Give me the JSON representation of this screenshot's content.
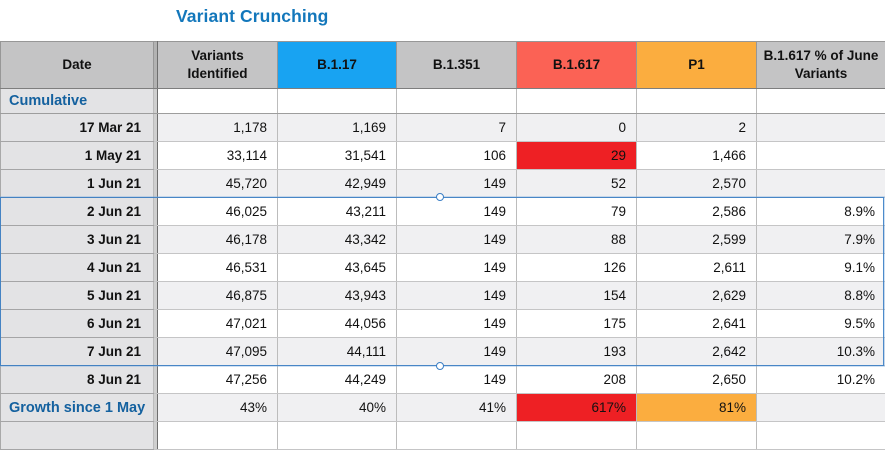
{
  "title": "Variant Crunching",
  "colors": {
    "title_blue": "#1377bb",
    "row_label_blue": "#14619f",
    "header_gray": "#c4c4c5",
    "header_blue": "#18a3f2",
    "header_red": "#fb6255",
    "header_orange": "#fbad3f",
    "cell_highlight_red": "#ee2024",
    "cell_highlight_orange": "#fbad3f",
    "selection_blue": "#3a7ec5",
    "date_column_gray": "#e3e3e5",
    "zebra_gray": "#f0f0f2"
  },
  "table": {
    "columns": [
      {
        "label": "Date",
        "color": "gray"
      },
      {
        "label": "Variants Identified",
        "color": "gray"
      },
      {
        "label": "B.1.17",
        "color": "blue"
      },
      {
        "label": "B.1.351",
        "color": "gray"
      },
      {
        "label": "B.1.617",
        "color": "red"
      },
      {
        "label": "P1",
        "color": "orange"
      },
      {
        "label": "B.1.617 % of June Variants",
        "color": "gray"
      }
    ],
    "rows": [
      {
        "label": "Cumulative",
        "kind": "section",
        "cells": [
          "",
          "",
          "",
          "",
          "",
          ""
        ]
      },
      {
        "label": "17 Mar 21",
        "kind": "data",
        "cells": [
          "1,178",
          "1,169",
          "7",
          "0",
          "2",
          ""
        ]
      },
      {
        "label": "1 May 21",
        "kind": "data",
        "cells": [
          "33,114",
          "31,541",
          "106",
          "29",
          "1,466",
          ""
        ],
        "highlights": {
          "3": "red"
        }
      },
      {
        "label": "1 Jun 21",
        "kind": "data",
        "cells": [
          "45,720",
          "42,949",
          "149",
          "52",
          "2,570",
          ""
        ]
      },
      {
        "label": "2 Jun 21",
        "kind": "data",
        "cells": [
          "46,025",
          "43,211",
          "149",
          "79",
          "2,586",
          "8.9%"
        ]
      },
      {
        "label": "3 Jun 21",
        "kind": "data",
        "cells": [
          "46,178",
          "43,342",
          "149",
          "88",
          "2,599",
          "7.9%"
        ]
      },
      {
        "label": "4 Jun 21",
        "kind": "data",
        "cells": [
          "46,531",
          "43,645",
          "149",
          "126",
          "2,611",
          "9.1%"
        ]
      },
      {
        "label": "5 Jun 21",
        "kind": "data",
        "cells": [
          "46,875",
          "43,943",
          "149",
          "154",
          "2,629",
          "8.8%"
        ]
      },
      {
        "label": "6 Jun 21",
        "kind": "data",
        "cells": [
          "47,021",
          "44,056",
          "149",
          "175",
          "2,641",
          "9.5%"
        ]
      },
      {
        "label": "7 Jun 21",
        "kind": "data",
        "cells": [
          "47,095",
          "44,111",
          "149",
          "193",
          "2,642",
          "10.3%"
        ]
      },
      {
        "label": "8 Jun 21",
        "kind": "data",
        "cells": [
          "47,256",
          "44,249",
          "149",
          "208",
          "2,650",
          "10.2%"
        ]
      },
      {
        "label": "Growth since 1 May",
        "kind": "growth",
        "cells": [
          "43%",
          "40%",
          "41%",
          "617%",
          "81%",
          ""
        ],
        "highlights": {
          "3": "red",
          "4": "orange"
        }
      },
      {
        "label": "",
        "kind": "empty",
        "cells": [
          "",
          "",
          "",
          "",
          "",
          ""
        ]
      }
    ],
    "selection": {
      "first_row_label": "2 Jun 21",
      "last_row_label": "7 Jun 21"
    }
  }
}
